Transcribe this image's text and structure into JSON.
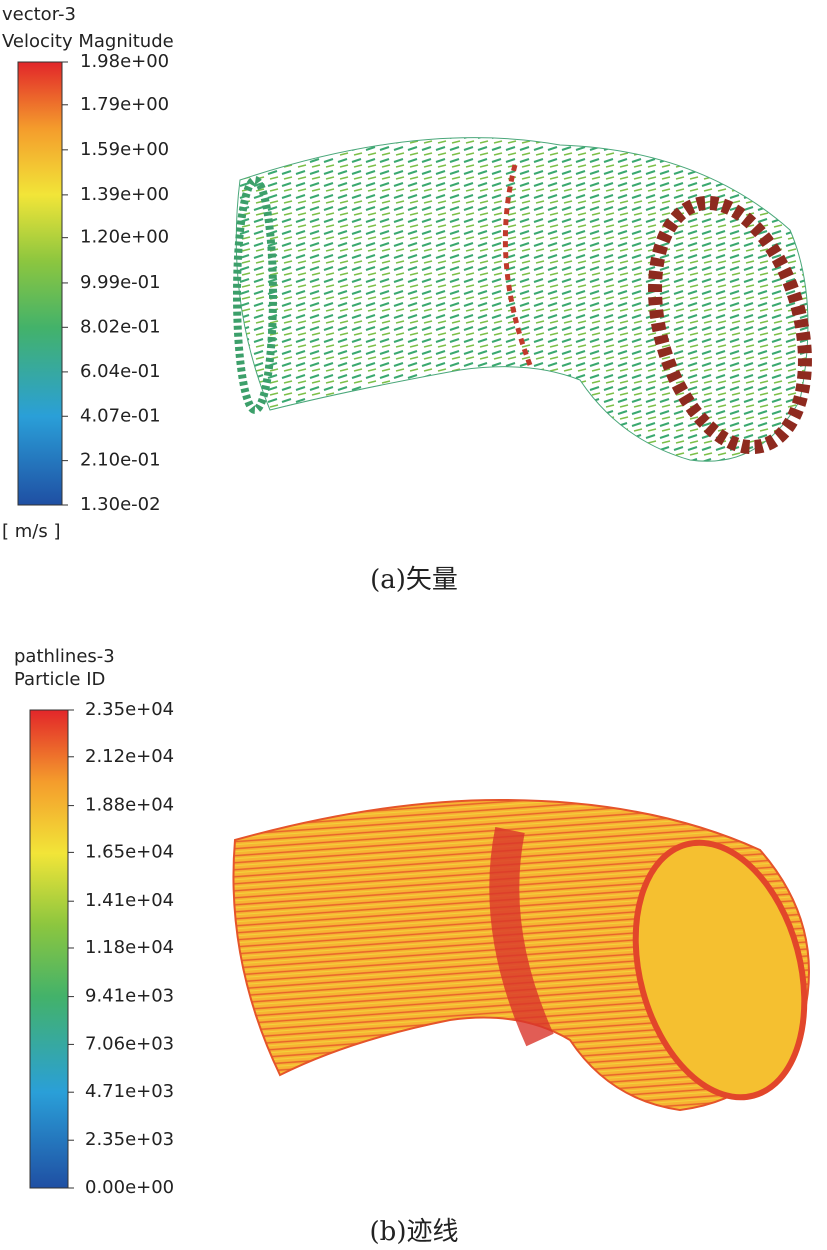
{
  "panels": [
    {
      "legend_title": "vector-3",
      "legend_subtitle": "Velocity Magnitude",
      "unit": "[ m/s ]",
      "caption": "(a)矢量",
      "ticks": [
        {
          "value": 1.98,
          "label": "1.98e+00"
        },
        {
          "value": 1.79,
          "label": "1.79e+00"
        },
        {
          "value": 1.59,
          "label": "1.59e+00"
        },
        {
          "value": 1.39,
          "label": "1.39e+00"
        },
        {
          "value": 1.2,
          "label": "1.20e+00"
        },
        {
          "value": 0.999,
          "label": "9.99e-01"
        },
        {
          "value": 0.802,
          "label": "8.02e-01"
        },
        {
          "value": 0.604,
          "label": "6.04e-01"
        },
        {
          "value": 0.407,
          "label": "4.07e-01"
        },
        {
          "value": 0.21,
          "label": "2.10e-01"
        },
        {
          "value": 0.013,
          "label": "1.30e-02"
        }
      ]
    },
    {
      "legend_title": "pathlines-3",
      "legend_subtitle": "Particle ID",
      "caption": "(b)迹线",
      "ticks": [
        {
          "value": 23500,
          "label": "2.35e+04"
        },
        {
          "value": 21200,
          "label": "2.12e+04"
        },
        {
          "value": 18800,
          "label": "1.88e+04"
        },
        {
          "value": 16500,
          "label": "1.65e+04"
        },
        {
          "value": 14100,
          "label": "1.41e+04"
        },
        {
          "value": 11800,
          "label": "1.18e+04"
        },
        {
          "value": 9410,
          "label": "9.41e+03"
        },
        {
          "value": 7060,
          "label": "7.06e+03"
        },
        {
          "value": 4710,
          "label": "4.71e+03"
        },
        {
          "value": 2350,
          "label": "2.35e+03"
        },
        {
          "value": 0,
          "label": "0.00e+00"
        }
      ]
    }
  ]
}
